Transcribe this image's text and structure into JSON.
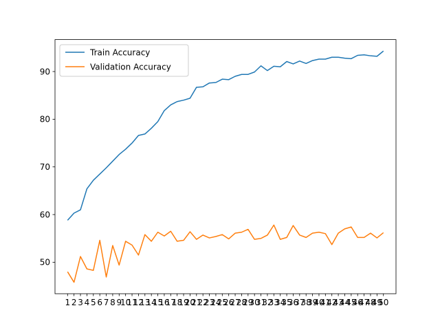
{
  "chart_data": {
    "type": "line",
    "title": "",
    "xlabel": "",
    "ylabel": "",
    "legend": "top-left",
    "grid": false,
    "x": [
      1,
      2,
      3,
      4,
      5,
      6,
      7,
      8,
      9,
      10,
      11,
      12,
      13,
      14,
      15,
      16,
      17,
      18,
      19,
      20,
      21,
      22,
      23,
      24,
      25,
      26,
      27,
      28,
      29,
      30,
      31,
      32,
      33,
      34,
      35,
      36,
      37,
      38,
      39,
      40,
      41,
      42,
      43,
      44,
      45,
      46,
      47,
      48,
      49,
      50
    ],
    "xticks": [
      "1",
      "2",
      "3",
      "4",
      "5",
      "6",
      "7",
      "8",
      "9",
      "10",
      "11",
      "12",
      "13",
      "14",
      "15",
      "16",
      "17",
      "18",
      "19",
      "20",
      "21",
      "22",
      "23",
      "24",
      "25",
      "26",
      "27",
      "28",
      "29",
      "30",
      "31",
      "32",
      "33",
      "34",
      "35",
      "36",
      "37",
      "38",
      "39",
      "40",
      "41",
      "42",
      "43",
      "44",
      "45",
      "46",
      "47",
      "48",
      "49",
      "50"
    ],
    "xlim": [
      -0.95,
      51.95
    ],
    "ylim": [
      43.4,
      96.7
    ],
    "yticks": [
      50,
      60,
      70,
      80,
      90
    ],
    "ytick_labels": [
      "50",
      "60",
      "70",
      "80",
      "90"
    ],
    "series": [
      {
        "name": "Train Accuracy",
        "color": "#1f77b4",
        "values": [
          58.8,
          60.3,
          61.0,
          65.4,
          67.2,
          68.5,
          69.8,
          71.2,
          72.6,
          73.7,
          75.0,
          76.6,
          76.9,
          78.1,
          79.5,
          81.8,
          83.0,
          83.7,
          84.0,
          84.4,
          86.7,
          86.8,
          87.6,
          87.7,
          88.4,
          88.3,
          89.0,
          89.4,
          89.4,
          89.9,
          91.2,
          90.2,
          91.1,
          91.0,
          92.1,
          91.6,
          92.2,
          91.7,
          92.3,
          92.6,
          92.6,
          93.0,
          93.0,
          92.8,
          92.7,
          93.4,
          93.5,
          93.3,
          93.2,
          94.3
        ]
      },
      {
        "name": "Validation Accuracy",
        "color": "#ff7f0e",
        "values": [
          48.0,
          45.8,
          51.2,
          48.6,
          48.3,
          54.6,
          46.9,
          53.5,
          49.4,
          54.4,
          53.6,
          51.5,
          55.8,
          54.4,
          56.3,
          55.5,
          56.5,
          54.4,
          54.6,
          56.4,
          54.8,
          55.7,
          55.1,
          55.4,
          55.8,
          54.9,
          56.1,
          56.3,
          56.9,
          54.8,
          55.0,
          55.7,
          57.8,
          54.8,
          55.2,
          57.7,
          55.7,
          55.2,
          56.1,
          56.3,
          56.0,
          53.7,
          56.1,
          57.0,
          57.4,
          55.2,
          55.2,
          56.1,
          55.1,
          56.2
        ]
      }
    ]
  }
}
